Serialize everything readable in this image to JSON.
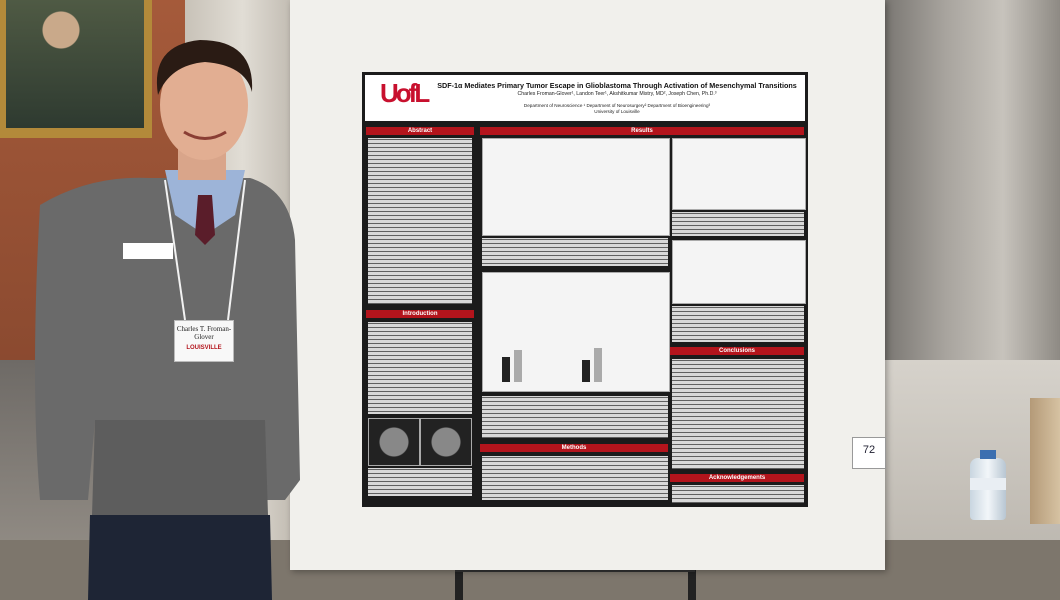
{
  "poster": {
    "logo": "UofL",
    "title": "SDF-1α Mediates Primary Tumor Escape in Glioblastoma Through Activation of Mesenchymal Transitions",
    "authors": "Charles Froman-Glover¹, Landon Teer¹, Akshitkumar Mistry, MD², Joseph Chen, Ph.D.³",
    "affiliations": "Department of Neuroscience ¹ Department of Neurosurgery² Department of Bioengineering³",
    "university": "University of Louisville",
    "sections": [
      "Abstract",
      "Introduction",
      "Results",
      "Methods",
      "Conclusions",
      "Acknowledgements"
    ]
  },
  "name_tag": {
    "name": "Charles T. Froman-Glover",
    "org": "LOUISVILLE"
  },
  "board_number": "72"
}
